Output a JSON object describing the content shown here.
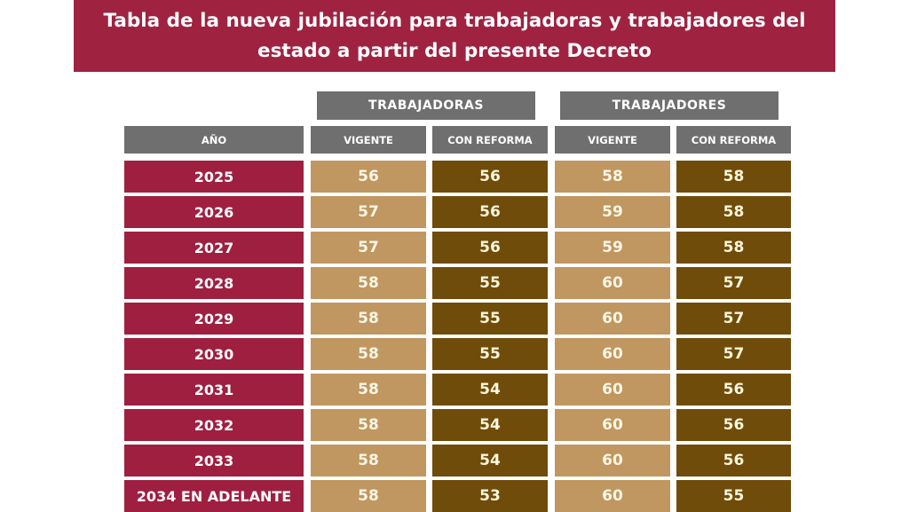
{
  "title": {
    "line1": "Tabla de la nueva jubilación para trabajadoras y trabajadores del",
    "line2": "estado a partir del presente Decreto"
  },
  "groups": {
    "women": "TRABAJADORAS",
    "men": "TRABAJADORES"
  },
  "headers": {
    "year": "AÑO",
    "women_current": "VIGENTE",
    "women_reform": "CON REFORMA",
    "men_current": "VIGENTE",
    "men_reform": "CON REFORMA"
  },
  "colors": {
    "banner": "#9f2241",
    "year": "#9f1f40",
    "current": "#c09760",
    "reform": "#704c0a",
    "header": "#6f6f6f"
  },
  "rows": [
    {
      "year": "2025",
      "women_current": "56",
      "women_reform": "56",
      "men_current": "58",
      "men_reform": "58"
    },
    {
      "year": "2026",
      "women_current": "57",
      "women_reform": "56",
      "men_current": "59",
      "men_reform": "58"
    },
    {
      "year": "2027",
      "women_current": "57",
      "women_reform": "56",
      "men_current": "59",
      "men_reform": "58"
    },
    {
      "year": "2028",
      "women_current": "58",
      "women_reform": "55",
      "men_current": "60",
      "men_reform": "57"
    },
    {
      "year": "2029",
      "women_current": "58",
      "women_reform": "55",
      "men_current": "60",
      "men_reform": "57"
    },
    {
      "year": "2030",
      "women_current": "58",
      "women_reform": "55",
      "men_current": "60",
      "men_reform": "57"
    },
    {
      "year": "2031",
      "women_current": "58",
      "women_reform": "54",
      "men_current": "60",
      "men_reform": "56"
    },
    {
      "year": "2032",
      "women_current": "58",
      "women_reform": "54",
      "men_current": "60",
      "men_reform": "56"
    },
    {
      "year": "2033",
      "women_current": "58",
      "women_reform": "54",
      "men_current": "60",
      "men_reform": "56"
    },
    {
      "year": "2034 EN ADELANTE",
      "women_current": "58",
      "women_reform": "53",
      "men_current": "60",
      "men_reform": "55"
    }
  ]
}
